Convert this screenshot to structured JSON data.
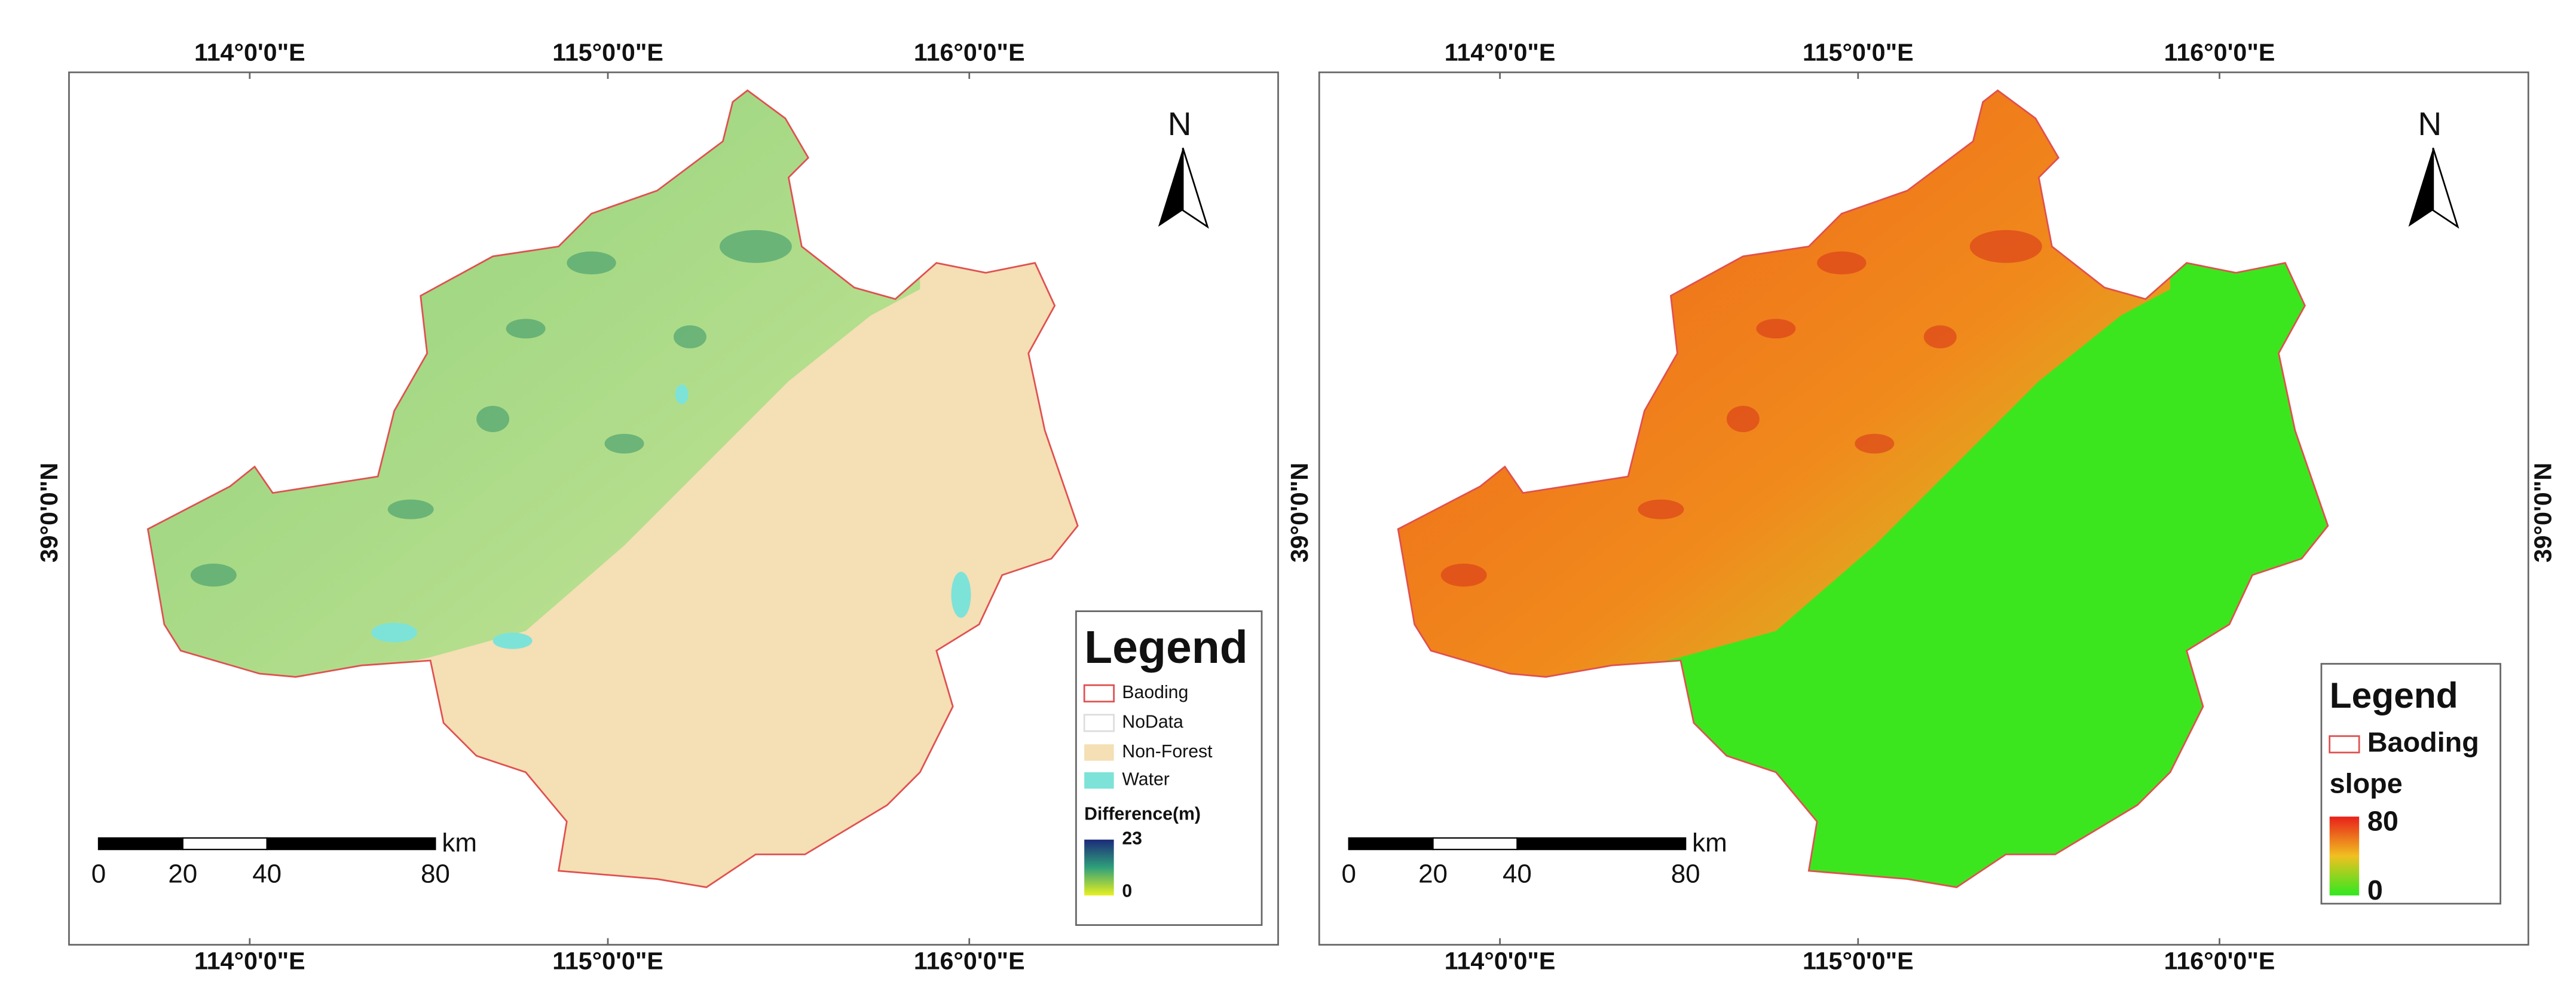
{
  "maps": [
    {
      "top_labels": [
        "114°0'0\"E",
        "115°0'0\"E",
        "116°0'0\"E"
      ],
      "bottom_labels": [
        "114°0'0\"E",
        "115°0'0\"E",
        "116°0'0\"E"
      ],
      "left_labels": [
        "39°0'0\"N"
      ],
      "north": "N",
      "scale": {
        "ticks": [
          0,
          20,
          40,
          80
        ],
        "unit": "km"
      },
      "legend": {
        "title": "Legend",
        "items": [
          "Baoding",
          "NoData",
          "Non-Forest",
          "Water"
        ],
        "ramp_title": "Difference(m)",
        "ramp_max": 23,
        "ramp_min": 0
      }
    },
    {
      "top_labels": [
        "114°0'0\"E",
        "115°0'0\"E",
        "116°0'0\"E"
      ],
      "bottom_labels": [
        "114°0'0\"E",
        "115°0'0\"E",
        "116°0'0\"E"
      ],
      "left_labels": [
        "39°0'0\"N"
      ],
      "right_labels": [
        "39°0'0\"N"
      ],
      "north": "N",
      "scale": {
        "ticks": [
          0,
          20,
          40,
          80
        ],
        "unit": "km"
      },
      "legend": {
        "title": "Legend",
        "items": [
          "Baoding"
        ],
        "ramp_title": "slope",
        "ramp_max": 80,
        "ramp_min": 0
      }
    }
  ]
}
